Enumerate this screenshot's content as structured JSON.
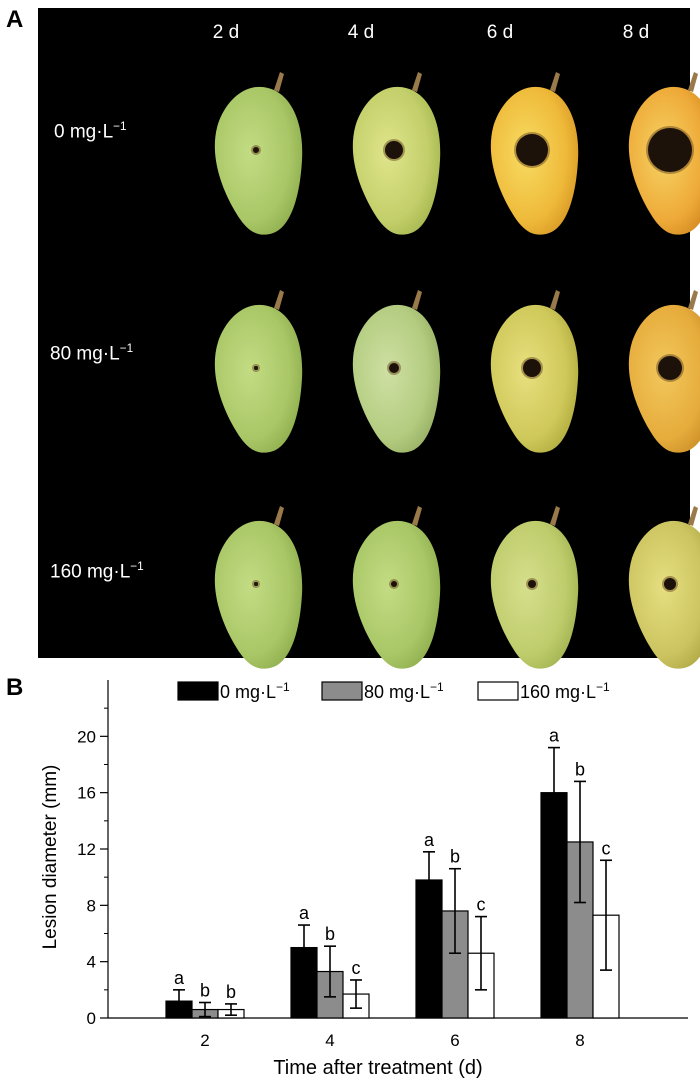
{
  "panel_a": {
    "letter": "A",
    "columns": [
      "2 d",
      "4 d",
      "6 d",
      "8 d"
    ],
    "rows": [
      {
        "label": "0 mg·L",
        "sup": "−1"
      },
      {
        "label": "80 mg·L",
        "sup": "−1"
      },
      {
        "label": "160 mg·L",
        "sup": "−1"
      }
    ]
  },
  "panel_b": {
    "letter": "B"
  },
  "chart_data": {
    "type": "bar",
    "xlabel": "Time after treatment (d)",
    "ylabel": "Lesion diameter (mm)",
    "categories": [
      "2",
      "4",
      "6",
      "8"
    ],
    "ylim": [
      0,
      24
    ],
    "yticks": [
      0,
      4,
      8,
      12,
      16,
      20
    ],
    "legend_position": "top",
    "series": [
      {
        "name": "0 mg·L",
        "name_sup": "−1",
        "color": "#000000",
        "values": [
          1.2,
          5.0,
          9.8,
          16.0
        ],
        "errors": [
          0.8,
          1.6,
          2.0,
          3.2
        ],
        "letters": [
          "a",
          "a",
          "a",
          "a"
        ]
      },
      {
        "name": "80 mg·L",
        "name_sup": "−1",
        "color": "#8c8c8c",
        "values": [
          0.6,
          3.3,
          7.6,
          12.5
        ],
        "errors": [
          0.5,
          1.8,
          3.0,
          4.3
        ],
        "letters": [
          "b",
          "b",
          "b",
          "b"
        ]
      },
      {
        "name": "160 mg·L",
        "name_sup": "−1",
        "color": "#ffffff",
        "values": [
          0.6,
          1.7,
          4.6,
          7.3
        ],
        "errors": [
          0.4,
          1.0,
          2.6,
          3.9
        ],
        "letters": [
          "b",
          "c",
          "c",
          "c"
        ]
      }
    ]
  }
}
